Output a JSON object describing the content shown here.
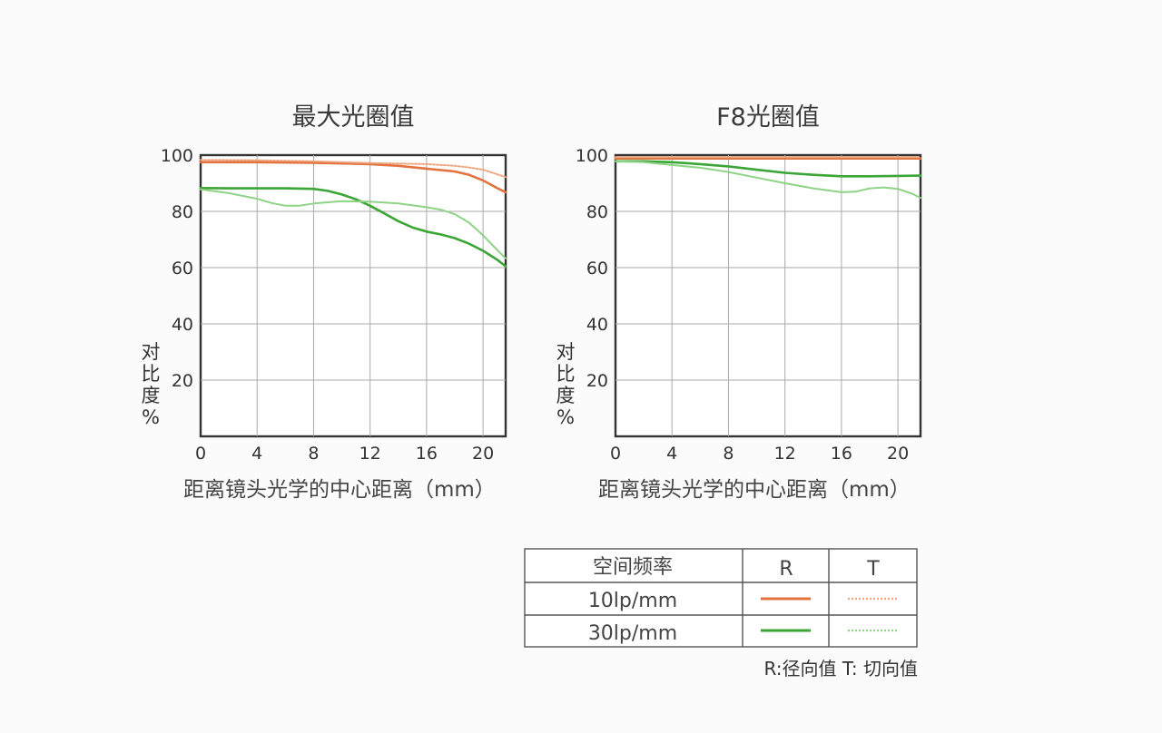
{
  "colors": {
    "r10": "#e2733f",
    "t10": "#eea47e",
    "r30": "#3ba536",
    "t30": "#8ed386"
  },
  "chart_data": [
    {
      "type": "line",
      "title": "最大光圈值",
      "xlabel": "距离镜头光学的中心距离（mm）",
      "ylabel": "对比度%",
      "xlim": [
        0,
        21.6
      ],
      "ylim": [
        0,
        100
      ],
      "xticks": [
        "0",
        "4",
        "8",
        "12",
        "16",
        "20"
      ],
      "yticks": [
        "20",
        "40",
        "60",
        "80",
        "100"
      ],
      "grid": true,
      "series": [
        {
          "key": "r10",
          "style": "solid",
          "x": [
            0,
            4,
            8,
            12,
            14,
            16,
            18,
            19,
            20,
            21,
            21.6
          ],
          "y": [
            97.5,
            97.5,
            97.3,
            96.8,
            96.2,
            95.2,
            94.2,
            93.0,
            91.0,
            88.3,
            86.8
          ]
        },
        {
          "key": "t10",
          "style": "dotted",
          "x": [
            0,
            4,
            8,
            12,
            14,
            16,
            18,
            19,
            20,
            21,
            21.6
          ],
          "y": [
            98.3,
            98.2,
            97.8,
            97.2,
            97.0,
            96.8,
            96.2,
            95.6,
            94.8,
            93.2,
            92.2
          ]
        },
        {
          "key": "r30",
          "style": "solid",
          "x": [
            0,
            2,
            4,
            6,
            8,
            9,
            10,
            11,
            12,
            13,
            14,
            15,
            16,
            17,
            18,
            19,
            20,
            21,
            21.6
          ],
          "y": [
            88.3,
            88.2,
            88.2,
            88.2,
            88.0,
            87.3,
            86.0,
            84.3,
            82.0,
            79.3,
            76.5,
            74.3,
            72.8,
            71.8,
            70.5,
            68.5,
            66.0,
            62.8,
            60.5
          ]
        },
        {
          "key": "t30",
          "style": "solid",
          "x": [
            0,
            2,
            4,
            5,
            6,
            7,
            8,
            10,
            12,
            14,
            16,
            17,
            18,
            19,
            20,
            21,
            21.6
          ],
          "y": [
            87.8,
            86.5,
            84.5,
            83.0,
            82.0,
            82.0,
            82.8,
            83.6,
            83.5,
            82.8,
            81.5,
            80.6,
            79.0,
            76.0,
            71.5,
            66.3,
            63.3
          ]
        }
      ]
    },
    {
      "type": "line",
      "title": "F8光圈值",
      "xlabel": "距离镜头光学的中心距离（mm）",
      "ylabel": "对比度%",
      "xlim": [
        0,
        21.6
      ],
      "ylim": [
        0,
        100
      ],
      "xticks": [
        "0",
        "4",
        "8",
        "12",
        "16",
        "20"
      ],
      "yticks": [
        "20",
        "40",
        "60",
        "80",
        "100"
      ],
      "grid": true,
      "series": [
        {
          "key": "r10",
          "style": "solid",
          "x": [
            0,
            4,
            8,
            12,
            16,
            20,
            21.6
          ],
          "y": [
            98.8,
            98.8,
            98.8,
            98.8,
            98.8,
            98.8,
            98.8
          ]
        },
        {
          "key": "t10",
          "style": "dotted",
          "x": [
            0,
            4,
            8,
            12,
            16,
            20,
            21.6
          ],
          "y": [
            99.3,
            99.3,
            99.3,
            99.3,
            99.3,
            99.3,
            99.3
          ]
        },
        {
          "key": "r30",
          "style": "solid",
          "x": [
            0,
            2,
            4,
            6,
            8,
            10,
            12,
            14,
            16,
            18,
            20,
            21.6
          ],
          "y": [
            97.8,
            97.8,
            97.5,
            96.8,
            96.0,
            94.8,
            93.7,
            93.0,
            92.5,
            92.5,
            92.6,
            92.7
          ]
        },
        {
          "key": "t30",
          "style": "solid",
          "x": [
            0,
            2,
            4,
            6,
            8,
            10,
            12,
            14,
            16,
            17,
            18,
            19,
            20,
            21,
            21.6
          ],
          "y": [
            97.8,
            97.5,
            96.5,
            95.5,
            94.0,
            92.0,
            90.0,
            88.2,
            86.8,
            87.0,
            88.2,
            88.5,
            88.0,
            86.3,
            84.8
          ]
        }
      ]
    }
  ],
  "legend": {
    "header_label": "空间频率",
    "col_r": "R",
    "col_t": "T",
    "rows": [
      {
        "label": "10lp/mm",
        "r_key": "r10",
        "t_key": "t10"
      },
      {
        "label": "30lp/mm",
        "r_key": "r30",
        "t_key": "t30"
      }
    ],
    "note": "R:径向值 T:  切向值"
  }
}
